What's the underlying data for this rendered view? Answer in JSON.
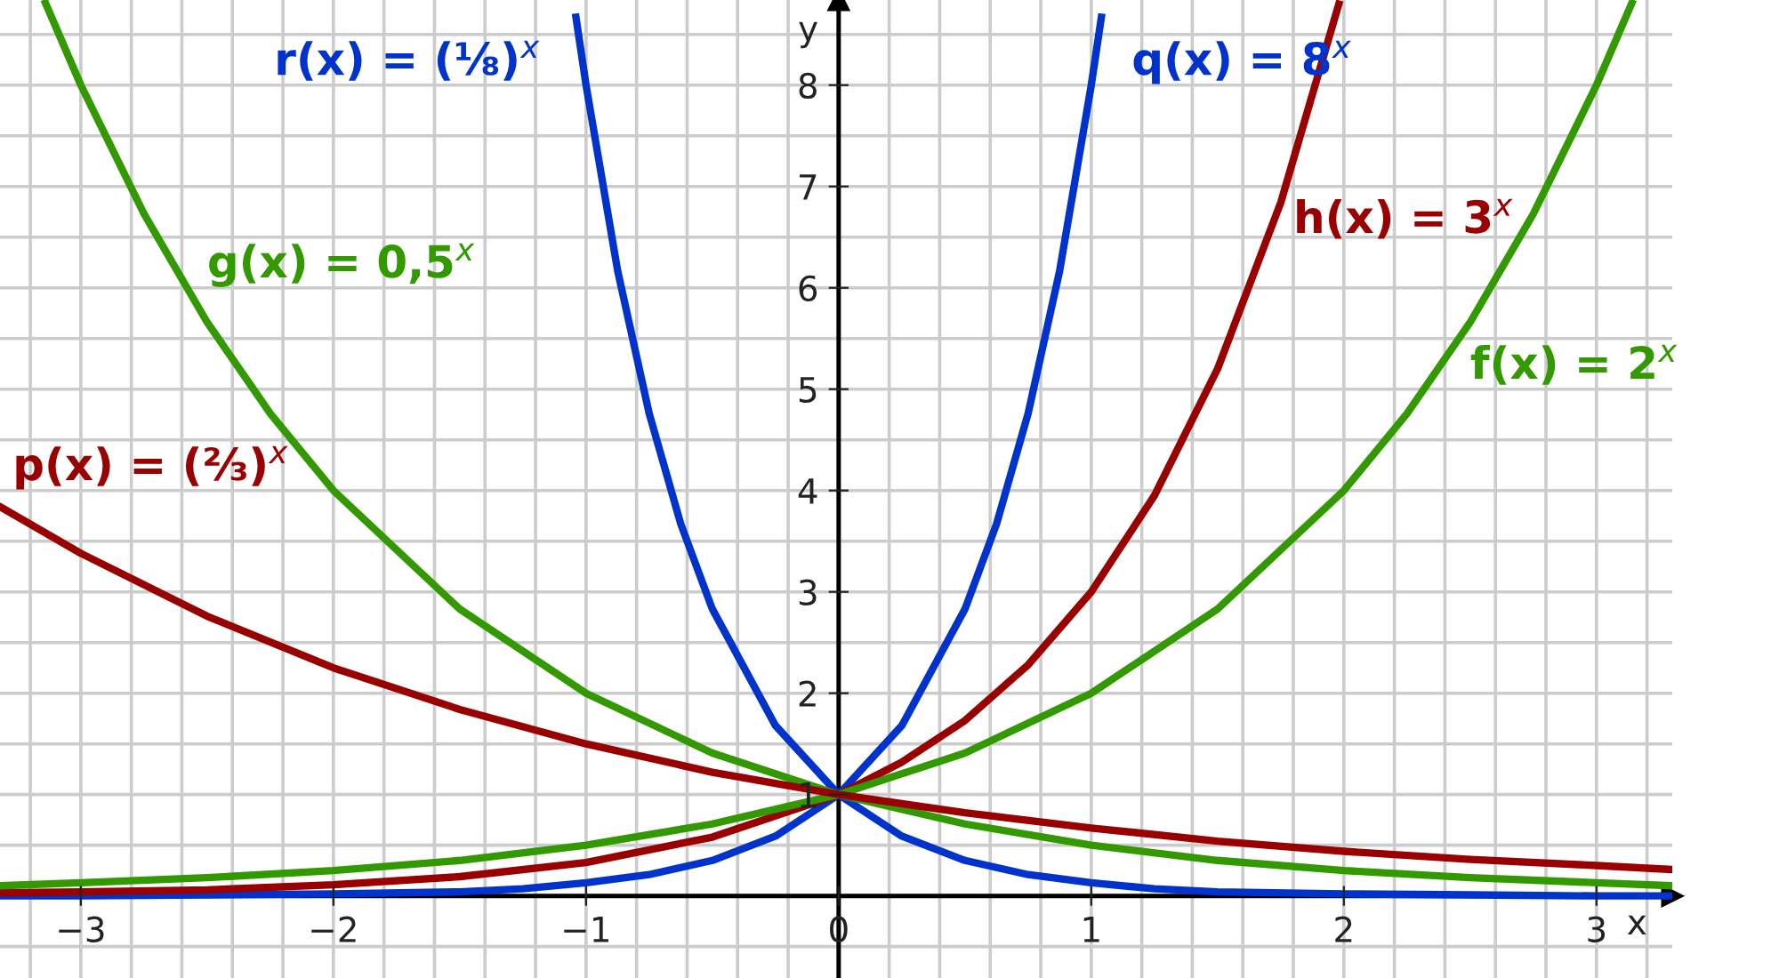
{
  "chart_data": {
    "type": "line",
    "xlabel": "x",
    "ylabel": "y",
    "xlim": [
      -3.32,
      3.3
    ],
    "ylim": [
      -0.81,
      8.84
    ],
    "xticks": [
      {
        "value": -3,
        "label": "−3"
      },
      {
        "value": -2,
        "label": "−2"
      },
      {
        "value": -1,
        "label": "−1"
      },
      0,
      1,
      2,
      3
    ],
    "yticks": [
      1,
      2,
      3,
      4,
      5,
      6,
      7,
      8
    ],
    "grid": true,
    "marker": "none",
    "line_style": "solid",
    "series": [
      {
        "name": "q(x) = 8$^{x}$",
        "color": "#0033cc",
        "x": [
          -3.32,
          -3,
          -2.5,
          -2,
          -1.5,
          -1.25,
          -1,
          -0.75,
          -0.5,
          -0.25,
          0,
          0.25,
          0.5,
          0.625,
          0.75,
          0.875,
          1,
          1.04
        ],
        "values": [
          0.0,
          0.0,
          0.01,
          0.02,
          0.04,
          0.07,
          0.13,
          0.21,
          0.35,
          0.59,
          1,
          1.68,
          2.83,
          3.67,
          4.76,
          6.17,
          8,
          8.67
        ]
      },
      {
        "name": "r(x) = (⅛)$^{x}$",
        "color": "#0033cc",
        "x": [
          -1.04,
          -1,
          -0.875,
          -0.75,
          -0.625,
          -0.5,
          -0.25,
          0,
          0.25,
          0.5,
          0.75,
          1,
          1.25,
          1.5,
          2,
          2.5,
          3,
          3.3
        ],
        "values": [
          8.67,
          8,
          6.17,
          4.76,
          3.67,
          2.83,
          1.68,
          1,
          0.59,
          0.35,
          0.21,
          0.13,
          0.07,
          0.04,
          0.02,
          0.01,
          0.0,
          0.0
        ]
      },
      {
        "name": "h(x) = 3$^{x}$",
        "color": "#990000",
        "x": [
          -3.32,
          -3,
          -2.5,
          -2,
          -1.5,
          -1,
          -0.5,
          0,
          0.25,
          0.5,
          0.75,
          1,
          1.25,
          1.5,
          1.75,
          1.98
        ],
        "values": [
          0.03,
          0.04,
          0.06,
          0.11,
          0.19,
          0.33,
          0.58,
          1,
          1.32,
          1.73,
          2.28,
          3,
          3.95,
          5.2,
          6.84,
          8.8
        ]
      },
      {
        "name": "f(x) = 2$^{x}$",
        "color": "#339900",
        "x": [
          -3.32,
          -3,
          -2.5,
          -2,
          -1.5,
          -1,
          -0.5,
          0,
          0.5,
          1,
          1.5,
          2,
          2.25,
          2.5,
          2.75,
          3,
          3.14
        ],
        "values": [
          0.1,
          0.13,
          0.18,
          0.25,
          0.35,
          0.5,
          0.71,
          1,
          1.41,
          2,
          2.83,
          4,
          4.76,
          5.66,
          6.73,
          8,
          8.81
        ]
      },
      {
        "name": "g(x) = 0,5$^{x}$",
        "color": "#339900",
        "x": [
          -3.14,
          -3,
          -2.75,
          -2.5,
          -2.25,
          -2,
          -1.5,
          -1,
          -0.5,
          0,
          0.5,
          1,
          1.5,
          2,
          2.5,
          3,
          3.3
        ],
        "values": [
          8.81,
          8,
          6.73,
          5.66,
          4.76,
          4,
          2.83,
          2,
          1.41,
          1,
          0.71,
          0.5,
          0.35,
          0.25,
          0.18,
          0.13,
          0.1
        ]
      },
      {
        "name": "p(x) = (⅔)$^{x}$",
        "color": "#990000",
        "x": [
          -3.32,
          -3,
          -2.5,
          -2,
          -1.5,
          -1,
          -0.5,
          0,
          0.5,
          1,
          1.5,
          2,
          2.5,
          3,
          3.3
        ],
        "values": [
          3.84,
          3.38,
          2.76,
          2.25,
          1.84,
          1.5,
          1.22,
          1,
          0.82,
          0.67,
          0.54,
          0.44,
          0.36,
          0.3,
          0.26
        ]
      }
    ]
  }
}
